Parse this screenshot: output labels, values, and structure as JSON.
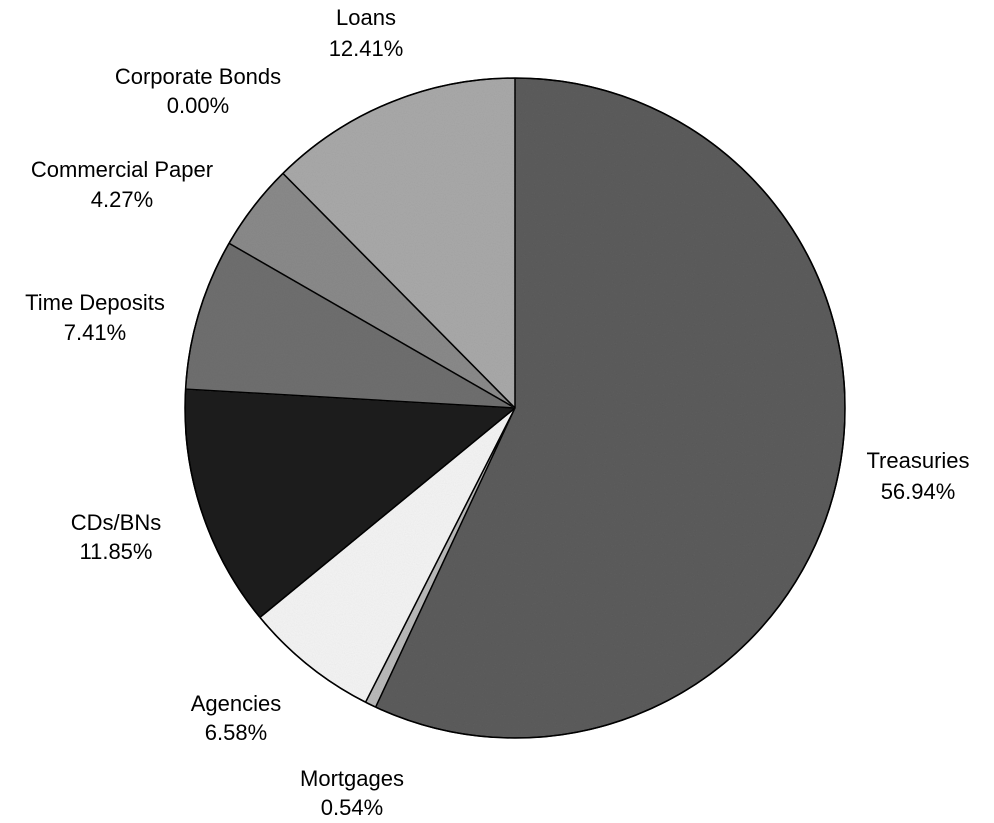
{
  "chart_data": {
    "type": "pie",
    "title": "",
    "start_angle_deg": 0,
    "direction": "clockwise",
    "slices": [
      {
        "name": "Treasuries",
        "value": 56.94,
        "pct_label": "56.94%",
        "color": "#5c5c5c"
      },
      {
        "name": "Mortgages",
        "value": 0.54,
        "pct_label": "0.54%",
        "color": "#b9b9b9"
      },
      {
        "name": "Agencies",
        "value": 6.58,
        "pct_label": "6.58%",
        "color": "#f4f4f4"
      },
      {
        "name": "CDs/BNs",
        "value": 11.85,
        "pct_label": "11.85%",
        "color": "#1c1c1c"
      },
      {
        "name": "Time Deposits",
        "value": 7.41,
        "pct_label": "7.41%",
        "color": "#6f6f6f"
      },
      {
        "name": "Commercial Paper",
        "value": 4.27,
        "pct_label": "4.27%",
        "color": "#8a8a8a"
      },
      {
        "name": "Corporate Bonds",
        "value": 0.0,
        "pct_label": "0.00%",
        "color": "#7a7a7a"
      },
      {
        "name": "Loans",
        "value": 12.41,
        "pct_label": "12.41%",
        "color": "#a9a9a9"
      }
    ],
    "legend": "none",
    "grid": false
  }
}
